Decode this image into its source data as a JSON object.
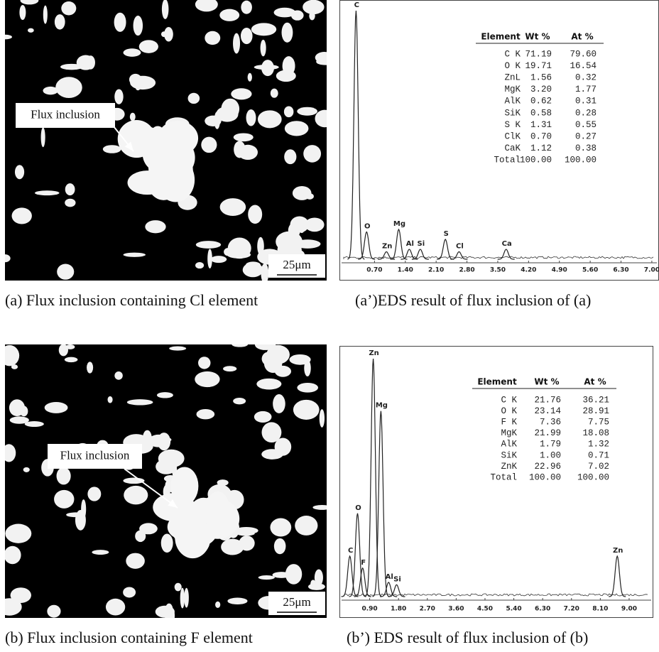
{
  "panels": [
    {
      "type": "micrograph",
      "label": "Flux inclusion",
      "scale_bar": "25μm",
      "caption": "(a)  Flux inclusion containing Cl element"
    },
    {
      "type": "spectrum",
      "xlim": [
        0,
        7.05
      ],
      "xticks": [
        {
          "value": 0.7,
          "label": "0.70"
        },
        {
          "value": 1.4,
          "label": "1.40"
        },
        {
          "value": 2.1,
          "label": "2.10"
        },
        {
          "value": 2.8,
          "label": "2.80"
        },
        {
          "value": 3.5,
          "label": "3.50"
        },
        {
          "value": 4.2,
          "label": "4.20"
        },
        {
          "value": 4.9,
          "label": "4.90"
        },
        {
          "value": 5.6,
          "label": "5.60"
        },
        {
          "value": 6.3,
          "label": "6.30"
        },
        {
          "value": 7,
          "label": "7.00"
        }
      ],
      "peaks": [
        {
          "label": "C",
          "x": 0.28,
          "height": 100
        },
        {
          "label": "O",
          "x": 0.52,
          "height": 11
        },
        {
          "label": "Zn",
          "x": 0.97,
          "height": 3
        },
        {
          "label": "Mg",
          "x": 1.25,
          "height": 12
        },
        {
          "label": "Al",
          "x": 1.49,
          "height": 4
        },
        {
          "label": "Si",
          "x": 1.74,
          "height": 4
        },
        {
          "label": "S",
          "x": 2.31,
          "height": 8
        },
        {
          "label": "Cl",
          "x": 2.62,
          "height": 3
        },
        {
          "label": "Ca",
          "x": 3.69,
          "height": 4
        }
      ],
      "table": {
        "header": [
          "Element",
          "Wt %",
          "At %"
        ],
        "rows": [
          [
            "C K",
            "71.19",
            "79.60"
          ],
          [
            "O K",
            "19.71",
            "16.54"
          ],
          [
            "ZnL",
            "1.56",
            "0.32"
          ],
          [
            "MgK",
            "3.20",
            "1.77"
          ],
          [
            "AlK",
            "0.62",
            "0.31"
          ],
          [
            "SiK",
            "0.58",
            "0.28"
          ],
          [
            "S K",
            "1.31",
            "0.55"
          ],
          [
            "ClK",
            "0.70",
            "0.27"
          ],
          [
            "CaK",
            "1.12",
            "0.38"
          ],
          [
            "Total",
            "100.00",
            "100.00"
          ]
        ]
      },
      "caption": "(a’)EDS result of flux inclusion of (a)"
    },
    {
      "type": "micrograph",
      "label": "Flux inclusion",
      "scale_bar": "25μm",
      "caption": "(b)  Flux inclusion containing F element"
    },
    {
      "type": "spectrum",
      "xlim": [
        0,
        9.6
      ],
      "xticks": [
        {
          "value": 0.9,
          "label": "0.90"
        },
        {
          "value": 1.8,
          "label": "1.80"
        },
        {
          "value": 2.7,
          "label": "2.70"
        },
        {
          "value": 3.6,
          "label": "3.60"
        },
        {
          "value": 4.5,
          "label": "4.50"
        },
        {
          "value": 5.4,
          "label": "5.40"
        },
        {
          "value": 6.3,
          "label": "6.30"
        },
        {
          "value": 7.2,
          "label": "7.20"
        },
        {
          "value": 8.1,
          "label": "8.10"
        },
        {
          "value": 9,
          "label": "9.00"
        }
      ],
      "peaks": [
        {
          "label": "C",
          "x": 0.28,
          "height": 17
        },
        {
          "label": "O",
          "x": 0.52,
          "height": 35
        },
        {
          "label": "F",
          "x": 0.68,
          "height": 12
        },
        {
          "label": "Zn",
          "x": 1.01,
          "height": 100
        },
        {
          "label": "Mg",
          "x": 1.25,
          "height": 78
        },
        {
          "label": "Al",
          "x": 1.49,
          "height": 6
        },
        {
          "label": "Si",
          "x": 1.74,
          "height": 5
        },
        {
          "label": "Zn",
          "x": 8.63,
          "height": 17
        }
      ],
      "table": {
        "header": [
          "Element",
          "Wt %",
          "At %"
        ],
        "rows": [
          [
            "C K",
            "21.76",
            "36.21"
          ],
          [
            "O K",
            "23.14",
            "28.91"
          ],
          [
            "F K",
            "7.36",
            "7.75"
          ],
          [
            "MgK",
            "21.99",
            "18.08"
          ],
          [
            "AlK",
            "1.79",
            "1.32"
          ],
          [
            "SiK",
            "1.00",
            "0.71"
          ],
          [
            "ZnK",
            "22.96",
            "7.02"
          ],
          [
            "Total",
            "100.00",
            "100.00"
          ]
        ]
      },
      "caption": "(b’) EDS result of flux inclusion of (b)"
    }
  ]
}
